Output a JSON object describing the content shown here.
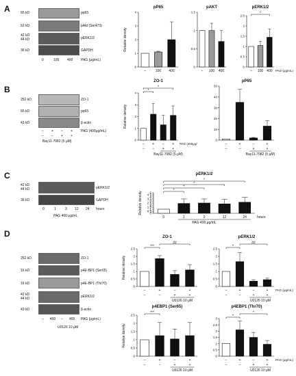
{
  "panels": {
    "A": {
      "letter": "A",
      "blot_rows": [
        {
          "kd": "65 kD",
          "protein": "pp65"
        },
        {
          "kd": "63 kD",
          "protein": "pAkt (Ser473)"
        },
        {
          "kd": "42 kD",
          "kd2": "44 kD",
          "protein": "pERK1/2"
        },
        {
          "kd": "36 kD",
          "protein": "GAPDH"
        }
      ],
      "x_labels": [
        "0",
        "100",
        "400"
      ],
      "unit": "PAG (μg/mL)"
    },
    "B": {
      "letter": "B",
      "blot_rows": [
        {
          "kd": "252 kD",
          "protein": "ZO-1"
        },
        {
          "kd": "65 kD",
          "protein": "pp65"
        },
        {
          "kd": "43 kD",
          "protein": "β-actin"
        }
      ],
      "pag_row": [
        "–",
        "+",
        "–",
        "+"
      ],
      "pag_label": "PAG (400μg/mL)",
      "inhibitor_label": "Bay11-7082 (5 μM)"
    },
    "C": {
      "letter": "C",
      "blot_rows": [
        {
          "kd": "42 kD",
          "kd2": "44 kD",
          "protein": "pERK1/2"
        },
        {
          "kd": "36 kD",
          "protein": "GAPDH"
        }
      ],
      "x_labels": [
        "0",
        "1",
        "3",
        "12",
        "24"
      ],
      "hours_label": "hours",
      "treatment_label": "PAG 400 μg/mL"
    },
    "D": {
      "letter": "D",
      "blot_rows": [
        {
          "kd": "252 kD",
          "protein": "ZO-1"
        },
        {
          "kd": "16 kD",
          "protein": "p4E-BP1 (Ser65)"
        },
        {
          "kd": "16 kD",
          "protein": "p4E-BP1 (Thr70)"
        },
        {
          "kd": "42 kD",
          "kd2": "44 kD",
          "protein": "pERK1/2"
        },
        {
          "kd": "43 kD",
          "protein": "β-actin"
        }
      ],
      "x_labels": [
        "–",
        "400",
        "–",
        "400"
      ],
      "pag_label": "PAG (μg/mL)",
      "inhibitor_label": "U0126 10 μM"
    }
  },
  "chart_data": [
    {
      "id": "A1",
      "type": "bar",
      "title": "pP65",
      "ylabel": "Relative density",
      "ylim": [
        0,
        4
      ],
      "yticks": [
        0,
        1,
        2,
        3,
        4
      ],
      "categories": [
        "–",
        "100",
        "400"
      ],
      "values": [
        1.0,
        1.1,
        2.0
      ],
      "errors": [
        0,
        0.05,
        1.3
      ],
      "colors": [
        "#ffffff",
        "#9a9a9a",
        "#111111"
      ]
    },
    {
      "id": "A2",
      "type": "bar",
      "title": "pAKT",
      "ylabel": "",
      "ylim": [
        0,
        1.5
      ],
      "yticks": [
        0,
        0.5,
        1,
        1.5
      ],
      "categories": [
        "–",
        "100",
        "400"
      ],
      "values": [
        1.0,
        1.0,
        0.7
      ],
      "errors": [
        0,
        0.2,
        0.3
      ],
      "colors": [
        "#ffffff",
        "#9a9a9a",
        "#111111"
      ]
    },
    {
      "id": "A3",
      "type": "bar",
      "title": "pERK1/2",
      "ylabel": "",
      "ylim": [
        0,
        2.5
      ],
      "yticks": [
        0,
        0.5,
        1,
        1.5,
        2,
        2.5
      ],
      "categories": [
        "–",
        "100",
        "400"
      ],
      "values": [
        1.0,
        1.05,
        1.45
      ],
      "errors": [
        0,
        0.2,
        0.4
      ],
      "colors": [
        "#ffffff",
        "#9a9a9a",
        "#111111"
      ],
      "unit": "PAG (μg/mL)",
      "sig": [
        {
          "from": 0,
          "to": 2,
          "label": "*"
        }
      ]
    },
    {
      "id": "B1",
      "type": "bar",
      "title": "ZO-1",
      "ylabel": "Relative density",
      "ylim": [
        0,
        4
      ],
      "yticks": [
        0,
        1,
        2,
        3,
        4
      ],
      "categories": [
        "–",
        "+",
        "–",
        "+"
      ],
      "values": [
        1.0,
        2.2,
        1.3,
        2.1
      ],
      "errors": [
        0,
        0.9,
        0.8,
        0.8
      ],
      "colors": [
        "#ffffff",
        "#111111",
        "#111111",
        "#111111"
      ],
      "row2": [
        "–",
        "–",
        "+",
        "+"
      ],
      "inhibitor": "Bay11-7082 (5 μM)",
      "pag_label": "PAG (400μg/mL)",
      "sig": [
        {
          "from": 0,
          "to": 1,
          "label": "*"
        },
        {
          "from": 0,
          "to": 3,
          "label": "*"
        }
      ]
    },
    {
      "id": "B2",
      "type": "bar",
      "title": "pP65",
      "ylabel": "",
      "ylim": [
        0,
        50
      ],
      "yticks": [
        0,
        10,
        20,
        30,
        40,
        50
      ],
      "categories": [
        "–",
        "+",
        "–",
        "+"
      ],
      "values": [
        1.0,
        35.0,
        2.0,
        13.0
      ],
      "errors": [
        0,
        12,
        0.5,
        5
      ],
      "colors": [
        "#ffffff",
        "#111111",
        "#111111",
        "#111111"
      ],
      "row2": [
        "–",
        "–",
        "+",
        "+"
      ],
      "inhibitor": "Bay11-7082 (5 μM)"
    },
    {
      "id": "C1",
      "type": "bar",
      "title": "pERK1/2",
      "ylabel": "Relative density",
      "ylim": [
        0,
        5
      ],
      "yticks": [
        0,
        0.5,
        1,
        1.5,
        2,
        2.5,
        3,
        3.5,
        4,
        4.5,
        5
      ],
      "categories": [
        "0",
        "1",
        "3",
        "12",
        "24"
      ],
      "values": [
        1.0,
        2.4,
        2.5,
        2.3,
        2.7
      ],
      "errors": [
        0,
        1.1,
        1.0,
        1.1,
        1.2
      ],
      "colors": [
        "#ffffff",
        "#111111",
        "#111111",
        "#111111",
        "#111111"
      ],
      "xunit": "hours",
      "treatment": "PAG 400 μg/mL",
      "sig": [
        {
          "from": 0,
          "to": 1,
          "label": "*"
        },
        {
          "from": 0,
          "to": 2,
          "label": "*"
        },
        {
          "from": 0,
          "to": 3,
          "label": "*"
        },
        {
          "from": 0,
          "to": 4,
          "label": "*"
        }
      ]
    },
    {
      "id": "D1",
      "type": "bar",
      "title": "ZO-1",
      "ylabel": "Relative density",
      "ylim": [
        0,
        2.5
      ],
      "yticks": [
        0,
        0.5,
        1,
        1.5,
        2,
        2.5
      ],
      "categories": [
        "–",
        "+",
        "–",
        "+"
      ],
      "values": [
        1.0,
        1.85,
        0.8,
        1.1
      ],
      "errors": [
        0,
        0.2,
        0.25,
        0.35
      ],
      "colors": [
        "#ffffff",
        "#111111",
        "#111111",
        "#111111"
      ],
      "row2": [
        "–",
        "–",
        "+",
        "+"
      ],
      "inhibitor": "U0126 10 μM",
      "sig": [
        {
          "from": 0,
          "to": 1,
          "label": "***"
        },
        {
          "from": 1,
          "to": 3,
          "label": "##"
        }
      ]
    },
    {
      "id": "D2",
      "type": "bar",
      "title": "pERK1/2",
      "ylabel": "",
      "ylim": [
        0,
        2.5
      ],
      "yticks": [
        0,
        0.5,
        1,
        1.5,
        2,
        2.5
      ],
      "categories": [
        "–",
        "+",
        "–",
        "+"
      ],
      "values": [
        1.0,
        1.65,
        0.35,
        0.45
      ],
      "errors": [
        0,
        0.6,
        0.1,
        0.1
      ],
      "colors": [
        "#ffffff",
        "#111111",
        "#111111",
        "#111111"
      ],
      "row2": [
        "–",
        "–",
        "+",
        "+"
      ],
      "inhibitor": "U0126 10 μM",
      "pag_label": "PAG (μg/mL)",
      "sig": [
        {
          "from": 0,
          "to": 1,
          "label": "*"
        },
        {
          "from": 1,
          "to": 3,
          "label": "##"
        }
      ]
    },
    {
      "id": "D3",
      "type": "bar",
      "title": "p4EBP1 (Ser65)",
      "ylabel": "Relative density",
      "ylim": [
        0,
        2.5
      ],
      "yticks": [
        0,
        0.5,
        1,
        1.5,
        2,
        2.5
      ],
      "categories": [
        "–",
        "+",
        "–",
        "+"
      ],
      "values": [
        1.0,
        1.25,
        1.05,
        1.25
      ],
      "errors": [
        0,
        0.8,
        0.6,
        0.8
      ],
      "colors": [
        "#ffffff",
        "#111111",
        "#111111",
        "#111111"
      ],
      "row2": [
        "–",
        "–",
        "+",
        "+"
      ],
      "inhibitor": "U0126 10 μM",
      "sig": [
        {
          "from": 0,
          "to": 1,
          "label": "***"
        }
      ]
    },
    {
      "id": "D4",
      "type": "bar",
      "title": "p4EBP1 (Thr70)",
      "ylabel": "",
      "ylim": [
        0,
        3
      ],
      "yticks": [
        0,
        0.5,
        1,
        1.5,
        2,
        2.5,
        3
      ],
      "categories": [
        "–",
        "+",
        "–",
        "+"
      ],
      "values": [
        1.0,
        2.1,
        1.5,
        0.95
      ],
      "errors": [
        0,
        0.7,
        0.4,
        0.3
      ],
      "colors": [
        "#ffffff",
        "#111111",
        "#111111",
        "#111111"
      ],
      "row2": [
        "–",
        "–",
        "+",
        "+"
      ],
      "inhibitor": "U0126 10 μM",
      "pag_label": "PAG (μg/mL)",
      "sig": [
        {
          "from": 0,
          "to": 1,
          "label": "*"
        },
        {
          "from": 1,
          "to": 3,
          "label": "*"
        }
      ]
    }
  ]
}
